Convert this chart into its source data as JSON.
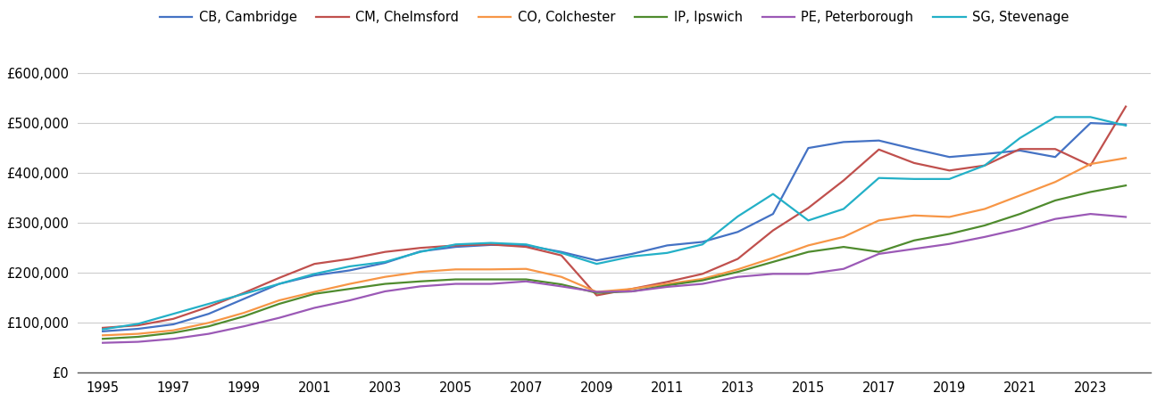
{
  "series": {
    "CB, Cambridge": {
      "color": "#4472C4",
      "years": [
        1995,
        1996,
        1997,
        1998,
        1999,
        2000,
        2001,
        2002,
        2003,
        2004,
        2005,
        2006,
        2007,
        2008,
        2009,
        2010,
        2011,
        2012,
        2013,
        2014,
        2015,
        2016,
        2017,
        2018,
        2019,
        2020,
        2021,
        2022,
        2023,
        2024
      ],
      "values": [
        83000,
        88000,
        97000,
        118000,
        148000,
        178000,
        195000,
        205000,
        220000,
        243000,
        252000,
        256000,
        255000,
        242000,
        225000,
        238000,
        255000,
        262000,
        282000,
        318000,
        450000,
        462000,
        465000,
        448000,
        432000,
        438000,
        445000,
        432000,
        500000,
        497000
      ]
    },
    "CM, Chelmsford": {
      "color": "#C0504D",
      "years": [
        1995,
        1996,
        1997,
        1998,
        1999,
        2000,
        2001,
        2002,
        2003,
        2004,
        2005,
        2006,
        2007,
        2008,
        2009,
        2010,
        2011,
        2012,
        2013,
        2014,
        2015,
        2016,
        2017,
        2018,
        2019,
        2020,
        2021,
        2022,
        2023,
        2024
      ],
      "values": [
        90000,
        95000,
        108000,
        132000,
        160000,
        190000,
        218000,
        228000,
        242000,
        250000,
        255000,
        257000,
        252000,
        235000,
        155000,
        168000,
        182000,
        198000,
        228000,
        285000,
        330000,
        385000,
        447000,
        420000,
        405000,
        415000,
        448000,
        448000,
        415000,
        533000
      ]
    },
    "CO, Colchester": {
      "color": "#F79646",
      "years": [
        1995,
        1996,
        1997,
        1998,
        1999,
        2000,
        2001,
        2002,
        2003,
        2004,
        2005,
        2006,
        2007,
        2008,
        2009,
        2010,
        2011,
        2012,
        2013,
        2014,
        2015,
        2016,
        2017,
        2018,
        2019,
        2020,
        2021,
        2022,
        2023,
        2024
      ],
      "values": [
        75000,
        78000,
        85000,
        100000,
        120000,
        145000,
        162000,
        178000,
        192000,
        202000,
        207000,
        207000,
        208000,
        192000,
        162000,
        168000,
        178000,
        188000,
        207000,
        230000,
        255000,
        272000,
        305000,
        315000,
        312000,
        328000,
        355000,
        382000,
        418000,
        430000
      ]
    },
    "IP, Ipswich": {
      "color": "#4F8B2E",
      "years": [
        1995,
        1996,
        1997,
        1998,
        1999,
        2000,
        2001,
        2002,
        2003,
        2004,
        2005,
        2006,
        2007,
        2008,
        2009,
        2010,
        2011,
        2012,
        2013,
        2014,
        2015,
        2016,
        2017,
        2018,
        2019,
        2020,
        2021,
        2022,
        2023,
        2024
      ],
      "values": [
        68000,
        72000,
        80000,
        93000,
        113000,
        138000,
        158000,
        168000,
        178000,
        183000,
        187000,
        187000,
        187000,
        177000,
        160000,
        163000,
        175000,
        185000,
        202000,
        222000,
        242000,
        252000,
        242000,
        265000,
        278000,
        295000,
        318000,
        345000,
        362000,
        375000
      ]
    },
    "PE, Peterborough": {
      "color": "#9B59B6",
      "years": [
        1995,
        1996,
        1997,
        1998,
        1999,
        2000,
        2001,
        2002,
        2003,
        2004,
        2005,
        2006,
        2007,
        2008,
        2009,
        2010,
        2011,
        2012,
        2013,
        2014,
        2015,
        2016,
        2017,
        2018,
        2019,
        2020,
        2021,
        2022,
        2023,
        2024
      ],
      "values": [
        60000,
        62000,
        68000,
        78000,
        93000,
        110000,
        130000,
        145000,
        163000,
        173000,
        178000,
        178000,
        183000,
        173000,
        162000,
        163000,
        172000,
        178000,
        192000,
        198000,
        198000,
        208000,
        238000,
        248000,
        258000,
        272000,
        288000,
        308000,
        318000,
        312000
      ]
    },
    "SG, Stevenage": {
      "color": "#23B0C7",
      "years": [
        1995,
        1996,
        1997,
        1998,
        1999,
        2000,
        2001,
        2002,
        2003,
        2004,
        2005,
        2006,
        2007,
        2008,
        2009,
        2010,
        2011,
        2012,
        2013,
        2014,
        2015,
        2016,
        2017,
        2018,
        2019,
        2020,
        2021,
        2022,
        2023,
        2024
      ],
      "values": [
        87000,
        98000,
        118000,
        138000,
        158000,
        178000,
        198000,
        213000,
        222000,
        242000,
        257000,
        260000,
        257000,
        240000,
        218000,
        233000,
        240000,
        257000,
        313000,
        358000,
        305000,
        328000,
        390000,
        388000,
        388000,
        415000,
        470000,
        512000,
        512000,
        495000
      ]
    }
  },
  "ylim": [
    0,
    650000
  ],
  "yticks": [
    0,
    100000,
    200000,
    300000,
    400000,
    500000,
    600000
  ],
  "background_color": "#ffffff",
  "grid_color": "#cccccc",
  "legend_fontsize": 10.5,
  "axis_fontsize": 10.5,
  "line_width": 1.6
}
